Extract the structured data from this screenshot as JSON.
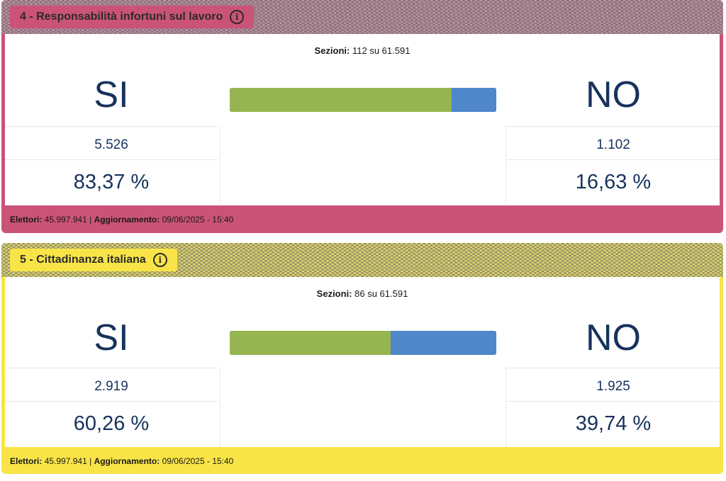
{
  "cards": [
    {
      "title": "4 - Responsabilità infortuni sul lavoro",
      "sezioni_label": "Sezioni:",
      "sezioni_value": "112 su 61.591",
      "si_label": "SI",
      "no_label": "NO",
      "si_votes": "5.526",
      "no_votes": "1.102",
      "si_pct": "83,37 %",
      "no_pct": "16,63 %",
      "bar_si_fraction": 0.8337,
      "elettori_label": "Elettori:",
      "elettori_value": "45.997.941",
      "separator": "|",
      "aggiornamento_label": "Aggiornamento:",
      "aggiornamento_value": "09/06/2025 - 15:40",
      "accent_color": "#cb5378"
    },
    {
      "title": "5 - Cittadinanza italiana",
      "sezioni_label": "Sezioni:",
      "sezioni_value": "86 su 61.591",
      "si_label": "SI",
      "no_label": "NO",
      "si_votes": "2.919",
      "no_votes": "1.925",
      "si_pct": "60,26 %",
      "no_pct": "39,74 %",
      "bar_si_fraction": 0.6026,
      "elettori_label": "Elettori:",
      "elettori_value": "45.997.941",
      "separator": "|",
      "aggiornamento_label": "Aggiornamento:",
      "aggiornamento_value": "09/06/2025 - 15:40",
      "accent_color": "#f9e447"
    }
  ],
  "colors": {
    "yes_bar": "#95b550",
    "no_bar": "#4f87c9",
    "text_blue": "#17325c"
  },
  "icons": {
    "info": "info-icon"
  }
}
